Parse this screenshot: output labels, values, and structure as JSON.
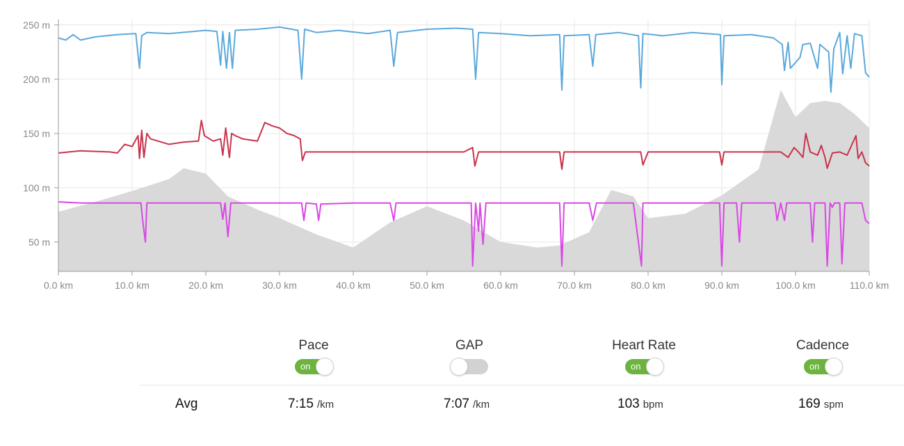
{
  "chart_data": {
    "type": "line",
    "xlabel": "",
    "ylabel": "",
    "x_ticks": [
      "0.0 km",
      "10.0 km",
      "20.0 km",
      "30.0 km",
      "40.0 km",
      "50.0 km",
      "60.0 km",
      "70.0 km",
      "80.0 km",
      "90.0 km",
      "100.0 km",
      "110.0 km"
    ],
    "y_ticks": [
      "50 m",
      "100 m",
      "150 m",
      "200 m",
      "250 m"
    ],
    "xlim": [
      0,
      110
    ],
    "ylim": [
      23,
      255
    ],
    "grid": true,
    "elevation_area": {
      "color": "#d9d9d9",
      "x": [
        0,
        5,
        10,
        15,
        17,
        20,
        23,
        27,
        30,
        35,
        40,
        45,
        50,
        55,
        60,
        65,
        68,
        72,
        75,
        78,
        80,
        85,
        90,
        95,
        98,
        100,
        102,
        104,
        106,
        108,
        110
      ],
      "y": [
        78,
        87,
        97,
        108,
        118,
        113,
        92,
        80,
        72,
        57,
        45,
        68,
        83,
        70,
        50,
        45,
        47,
        59,
        98,
        92,
        72,
        76,
        93,
        117,
        190,
        165,
        178,
        180,
        178,
        168,
        155
      ]
    },
    "series": [
      {
        "color": "#5aa9dc",
        "x": [
          0,
          1,
          2,
          3,
          5,
          8,
          10.5,
          11,
          11.3,
          12,
          15,
          20,
          21.5,
          22,
          22.3,
          22.8,
          23.2,
          23.6,
          24,
          27,
          30,
          32.5,
          33,
          33.4,
          35,
          38,
          42,
          45,
          45.5,
          46,
          50,
          54,
          56.2,
          56.6,
          57,
          60,
          64,
          68,
          68.3,
          68.6,
          72,
          72.5,
          72.9,
          76,
          78.7,
          79,
          79.3,
          82,
          86,
          89.8,
          90,
          90.3,
          94,
          97,
          98.2,
          98.5,
          99,
          99.3,
          100.6,
          101,
          102,
          103,
          103.3,
          104.5,
          104.8,
          105.2,
          106,
          106.4,
          107,
          107.5,
          108,
          109,
          109.5,
          110
        ],
        "y": [
          238,
          236,
          241,
          236,
          239,
          241,
          242,
          210,
          240,
          243,
          242,
          245,
          244,
          213,
          244,
          210,
          243,
          210,
          245,
          246,
          248,
          245,
          200,
          246,
          243,
          245,
          242,
          245,
          212,
          243,
          246,
          247,
          246,
          200,
          243,
          242,
          240,
          241,
          190,
          240,
          241,
          212,
          241,
          243,
          240,
          192,
          242,
          240,
          243,
          241,
          195,
          240,
          241,
          238,
          232,
          208,
          234,
          210,
          220,
          232,
          233,
          210,
          232,
          225,
          188,
          228,
          243,
          205,
          240,
          210,
          242,
          240,
          206,
          202
        ]
      },
      {
        "color": "#c8334c",
        "x": [
          0,
          3,
          7,
          8,
          9,
          10,
          10.8,
          11,
          11.3,
          11.6,
          12,
          12.5,
          15,
          17,
          19,
          19.4,
          19.8,
          21,
          22,
          22.3,
          22.7,
          23.2,
          23.5,
          24,
          25,
          27,
          28,
          29,
          30,
          31,
          32,
          32.8,
          33.1,
          33.5,
          35,
          40,
          45,
          50,
          55,
          56.2,
          56.5,
          57,
          60,
          65,
          68,
          68.3,
          68.6,
          72,
          78,
          79,
          79.3,
          80,
          85,
          89.7,
          90,
          90.3,
          95,
          98,
          99,
          99.8,
          100.4,
          101,
          101.4,
          102,
          103,
          103.5,
          104,
          104.3,
          105,
          106,
          107,
          108.2,
          108.5,
          109,
          109.5,
          110
        ],
        "y": [
          132,
          134,
          133,
          132,
          140,
          138,
          148,
          127,
          153,
          128,
          150,
          145,
          140,
          142,
          143,
          162,
          148,
          143,
          145,
          130,
          155,
          128,
          150,
          148,
          145,
          143,
          160,
          157,
          155,
          150,
          148,
          145,
          125,
          133,
          133,
          133,
          133,
          133,
          133,
          137,
          120,
          133,
          133,
          133,
          133,
          117,
          133,
          133,
          133,
          133,
          121,
          133,
          133,
          133,
          121,
          133,
          133,
          133,
          128,
          137,
          133,
          128,
          150,
          133,
          130,
          139,
          128,
          118,
          132,
          133,
          130,
          148,
          127,
          133,
          123,
          120
        ]
      },
      {
        "color": "#d947e6",
        "x": [
          0,
          3,
          6,
          10,
          11.2,
          11.4,
          11.8,
          12,
          15,
          20,
          22,
          22.3,
          22.6,
          23,
          23.4,
          23.8,
          25,
          30,
          33,
          33.3,
          33.6,
          35,
          35.3,
          35.6,
          40,
          45,
          45.5,
          45.8,
          50,
          56,
          56.2,
          56.6,
          57,
          57.2,
          57.6,
          58,
          60,
          65,
          68,
          68.3,
          68.6,
          72,
          72.5,
          73,
          78,
          79.1,
          79.3,
          79.6,
          85,
          89.7,
          90,
          90.3,
          92,
          92.4,
          92.7,
          96,
          97.2,
          97.5,
          98,
          98.5,
          98.8,
          99.5,
          100,
          102,
          102.3,
          102.6,
          103.5,
          104,
          104.3,
          104.7,
          105,
          105.3,
          106,
          106.3,
          106.7,
          108,
          109,
          109.5,
          110
        ],
        "y": [
          87,
          86,
          86,
          86,
          86,
          72,
          50,
          86,
          86,
          86,
          86,
          71,
          86,
          55,
          86,
          86,
          86,
          86,
          86,
          70,
          86,
          85,
          70,
          85,
          86,
          86,
          70,
          86,
          86,
          86,
          28,
          86,
          60,
          86,
          48,
          86,
          86,
          86,
          86,
          28,
          86,
          86,
          70,
          86,
          86,
          28,
          86,
          86,
          86,
          86,
          28,
          86,
          86,
          50,
          86,
          86,
          86,
          70,
          86,
          70,
          86,
          86,
          86,
          86,
          50,
          86,
          86,
          86,
          28,
          86,
          82,
          86,
          86,
          30,
          86,
          86,
          86,
          70,
          67
        ]
      }
    ]
  },
  "metrics": {
    "pace": {
      "label": "Pace",
      "toggle": "on",
      "avg_value": "7:15",
      "avg_unit": "/km"
    },
    "gap": {
      "label": "GAP",
      "toggle": "",
      "avg_value": "7:07",
      "avg_unit": "/km"
    },
    "heart_rate": {
      "label": "Heart Rate",
      "toggle": "on",
      "avg_value": "103",
      "avg_unit": "bpm"
    },
    "cadence": {
      "label": "Cadence",
      "toggle": "on",
      "avg_value": "169",
      "avg_unit": "spm"
    }
  },
  "avg_label": "Avg"
}
